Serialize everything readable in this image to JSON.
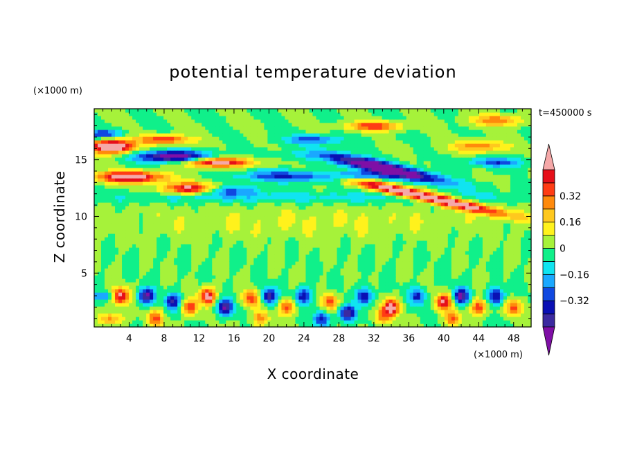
{
  "chart_data": {
    "type": "heatmap",
    "title": "potential temperature deviation",
    "xlabel": "X coordinate",
    "ylabel": "Z coordinate",
    "x_unit": "(×1000 m)",
    "y_unit": "(×1000 m)",
    "time_label": "t=450000 s",
    "xlim": [
      0,
      50
    ],
    "ylim": [
      0.25,
      19.5
    ],
    "x_ticks": [
      4,
      8,
      12,
      16,
      20,
      24,
      28,
      32,
      36,
      40,
      44,
      48
    ],
    "y_ticks": [
      5,
      10,
      15
    ],
    "colorbar": {
      "levels": [
        -0.48,
        -0.4,
        -0.32,
        -0.24,
        -0.16,
        -0.08,
        0,
        0.08,
        0.16,
        0.24,
        0.32,
        0.4,
        0.48
      ],
      "colors": [
        "#7f0fa6",
        "#3c2aa0",
        "#0a10b4",
        "#1048e0",
        "#1aa8ff",
        "#10e4f0",
        "#10f08a",
        "#a6f23a",
        "#fff21c",
        "#ffc81e",
        "#ff8a0c",
        "#ff3c14",
        "#e60f19",
        "#f5a8a8"
      ],
      "labels": [
        "0.32",
        "0.16",
        "0",
        "−0.16",
        "−0.32"
      ],
      "label_values": [
        0.32,
        0.16,
        0,
        -0.16,
        -0.32
      ]
    }
  }
}
